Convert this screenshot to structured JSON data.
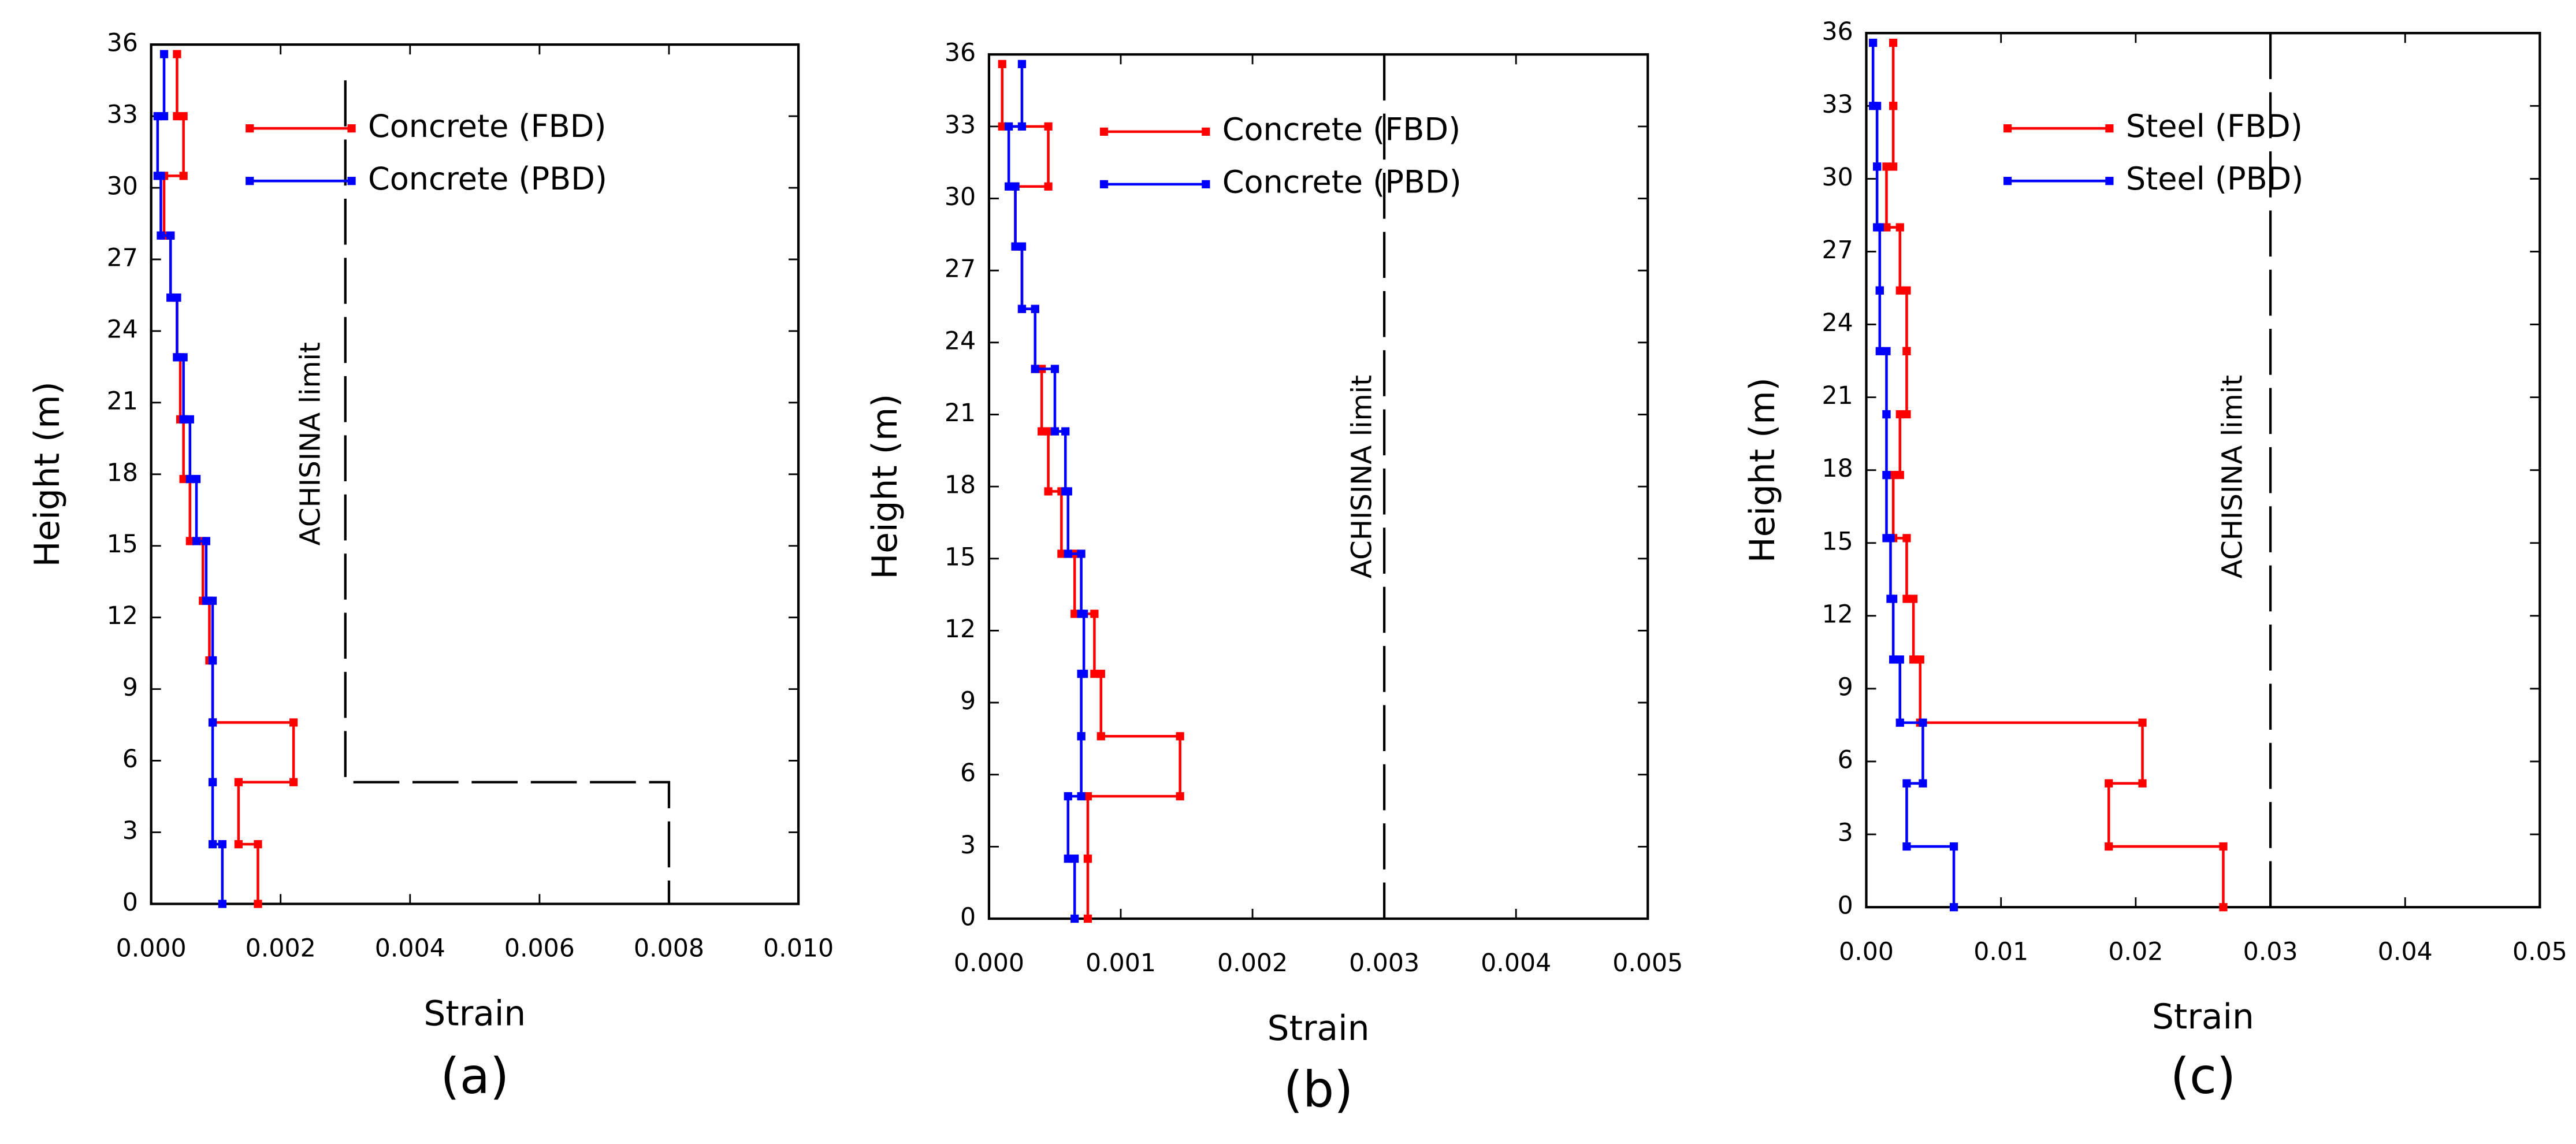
{
  "chart_data": [
    {
      "type": "line",
      "caption": "(a)",
      "xlabel": "Strain",
      "ylabel": "Height (m)",
      "xlim": [
        0,
        0.01
      ],
      "ylim": [
        0,
        36
      ],
      "xticks": [
        {
          "value": 0,
          "label": "0.000"
        },
        {
          "value": 0.002,
          "label": "0.002"
        },
        {
          "value": 0.004,
          "label": "0.004"
        },
        {
          "value": 0.006,
          "label": "0.006"
        },
        {
          "value": 0.008,
          "label": "0.008"
        },
        {
          "value": 0.01,
          "label": "0.010"
        }
      ],
      "yticks": [
        0,
        3,
        6,
        9,
        12,
        15,
        18,
        21,
        24,
        27,
        30,
        33,
        36
      ],
      "heights": [
        0,
        2.5,
        5.1,
        7.6,
        10.2,
        12.7,
        15.2,
        17.8,
        20.3,
        22.9,
        25.4,
        28,
        30.5,
        33,
        35.6
      ],
      "series": [
        {
          "name": "Concrete (FBD)",
          "color": "#ff0000",
          "values": [
            0.00165,
            0.00135,
            0.0022,
            0.00095,
            0.0009,
            0.0008,
            0.0006,
            0.0005,
            0.00045,
            0.0004,
            0.0003,
            0.0002,
            0.0005,
            0.0004
          ]
        },
        {
          "name": "Concrete (PBD)",
          "color": "#0000ff",
          "values": [
            0.0011,
            0.00095,
            0.00095,
            0.00095,
            0.00095,
            0.00085,
            0.0007,
            0.0006,
            0.0005,
            0.0004,
            0.0003,
            0.00015,
            0.0001,
            0.0002
          ]
        }
      ],
      "annotation": "ACHISINA limit",
      "limit_x": [
        0.003,
        0.003,
        0.008,
        0.008
      ],
      "limit_y": [
        34.5,
        5.1,
        5.1,
        0
      ]
    },
    {
      "type": "line",
      "caption": "(b)",
      "xlabel": "Strain",
      "ylabel": "Height (m)",
      "xlim": [
        0,
        0.005
      ],
      "ylim": [
        0,
        36
      ],
      "xticks": [
        {
          "value": 0,
          "label": "0.000"
        },
        {
          "value": 0.001,
          "label": "0.001"
        },
        {
          "value": 0.002,
          "label": "0.002"
        },
        {
          "value": 0.003,
          "label": "0.003"
        },
        {
          "value": 0.004,
          "label": "0.004"
        },
        {
          "value": 0.005,
          "label": "0.005"
        }
      ],
      "yticks": [
        0,
        3,
        6,
        9,
        12,
        15,
        18,
        21,
        24,
        27,
        30,
        33,
        36
      ],
      "heights": [
        0,
        2.5,
        5.1,
        7.6,
        10.2,
        12.7,
        15.2,
        17.8,
        20.3,
        22.9,
        25.4,
        28,
        30.5,
        33,
        35.6
      ],
      "series": [
        {
          "name": "Concrete (FBD)",
          "color": "#ff0000",
          "values": [
            0.00075,
            0.00075,
            0.00145,
            0.00085,
            0.0008,
            0.00065,
            0.00055,
            0.00045,
            0.0004,
            0.00035,
            0.00025,
            0.0002,
            0.00045,
            0.0001
          ]
        },
        {
          "name": "Concrete (PBD)",
          "color": "#0000ff",
          "values": [
            0.00065,
            0.0006,
            0.0007,
            0.0007,
            0.00072,
            0.0007,
            0.0006,
            0.00058,
            0.0005,
            0.00035,
            0.00025,
            0.0002,
            0.00015,
            0.00025
          ]
        }
      ],
      "annotation": "ACHISINA limit",
      "limit_x": [
        0.003,
        0.003
      ],
      "limit_y": [
        36,
        0
      ]
    },
    {
      "type": "line",
      "caption": "(c)",
      "xlabel": "Strain",
      "ylabel": "Height (m)",
      "xlim": [
        0,
        0.05
      ],
      "ylim": [
        0,
        36
      ],
      "xticks": [
        {
          "value": 0,
          "label": "0.00"
        },
        {
          "value": 0.01,
          "label": "0.01"
        },
        {
          "value": 0.02,
          "label": "0.02"
        },
        {
          "value": 0.03,
          "label": "0.03"
        },
        {
          "value": 0.04,
          "label": "0.04"
        },
        {
          "value": 0.05,
          "label": "0.05"
        }
      ],
      "yticks": [
        0,
        3,
        6,
        9,
        12,
        15,
        18,
        21,
        24,
        27,
        30,
        33,
        36
      ],
      "heights": [
        0,
        2.5,
        5.1,
        7.6,
        10.2,
        12.7,
        15.2,
        17.8,
        20.3,
        22.9,
        25.4,
        28,
        30.5,
        33,
        35.6
      ],
      "series": [
        {
          "name": "Steel (FBD)",
          "color": "#ff0000",
          "values": [
            0.0265,
            0.018,
            0.0205,
            0.004,
            0.0035,
            0.003,
            0.002,
            0.0025,
            0.003,
            0.003,
            0.0025,
            0.0015,
            0.002,
            0.002
          ]
        },
        {
          "name": "Steel (PBD)",
          "color": "#0000ff",
          "values": [
            0.0065,
            0.003,
            0.0042,
            0.0025,
            0.002,
            0.0018,
            0.0015,
            0.0015,
            0.0015,
            0.001,
            0.001,
            0.0008,
            0.0008,
            0.0005
          ]
        }
      ],
      "annotation": "ACHISINA limit",
      "limit_x": [
        0.03,
        0.03
      ],
      "limit_y": [
        36,
        0
      ]
    }
  ]
}
